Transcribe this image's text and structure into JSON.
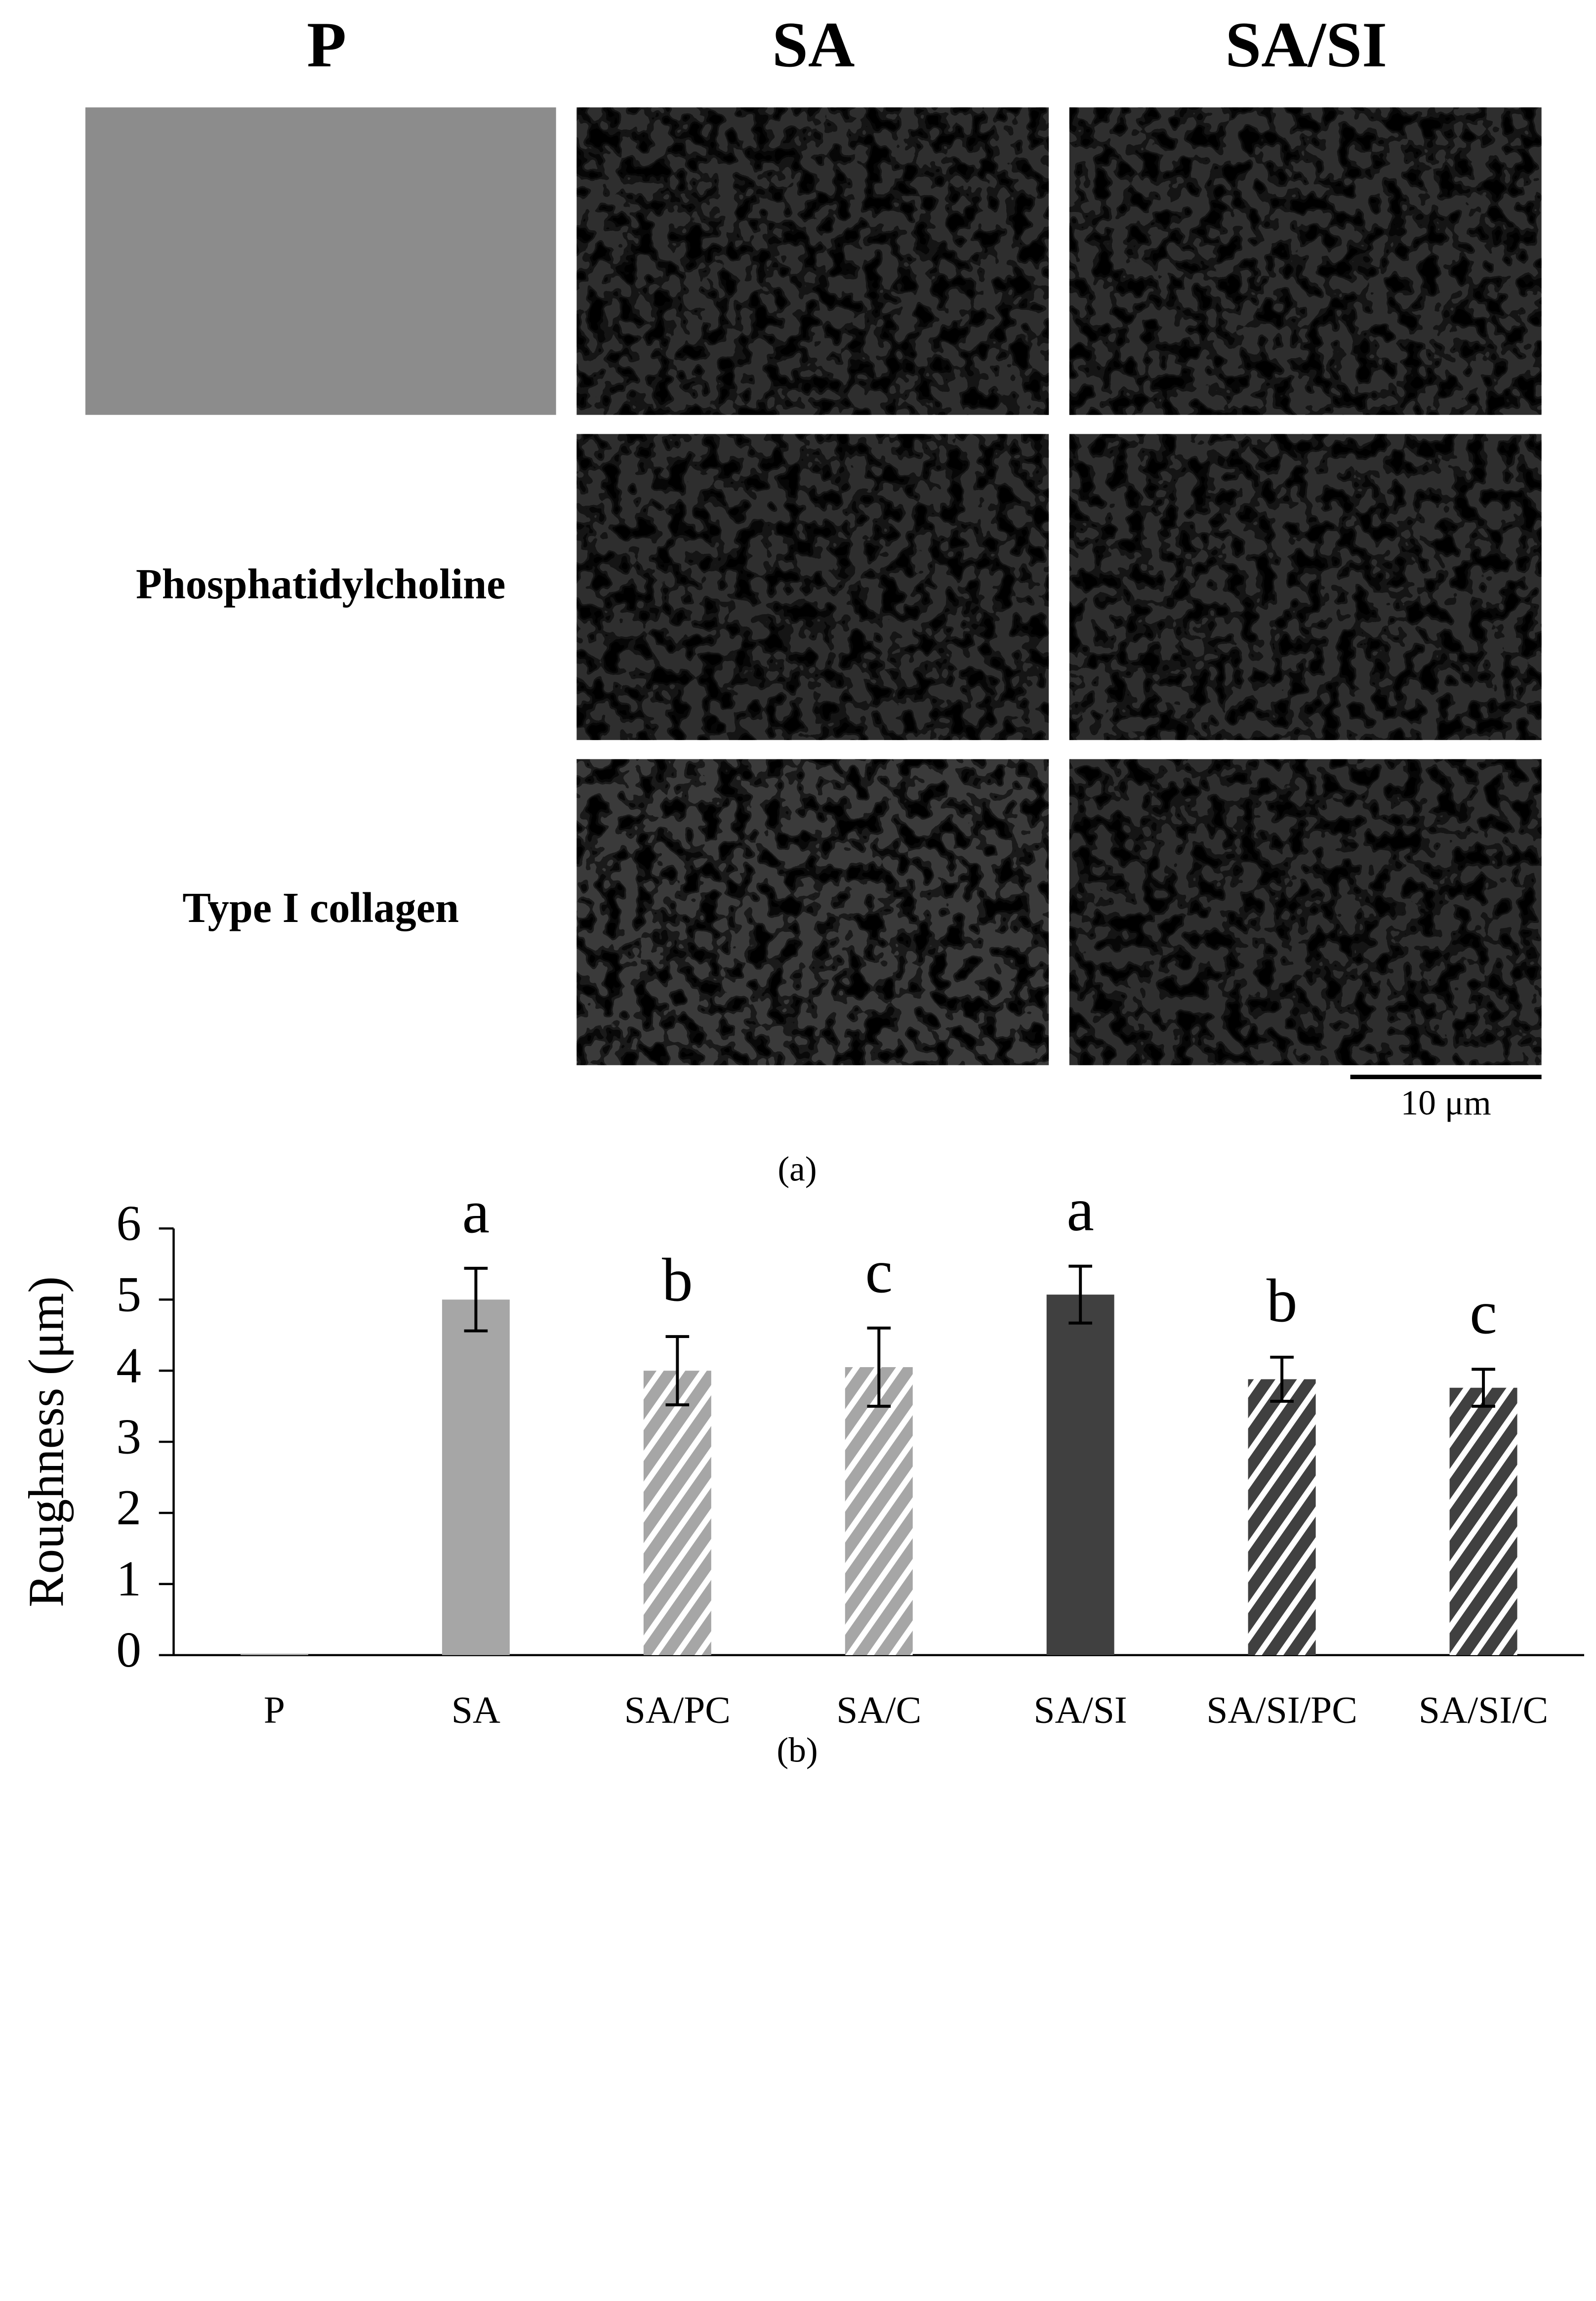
{
  "figure_a": {
    "column_labels": [
      "P",
      "SA",
      "SA/SI"
    ],
    "row_labels": [
      "Phosphatidylcholine",
      "Type I collagen"
    ],
    "scale_bar": "10 μm",
    "caption": "(a)"
  },
  "chart_data": {
    "type": "bar",
    "caption": "(b)",
    "y_label": "Roughness (μm)",
    "categories": [
      "P",
      "SA",
      "SA/PC",
      "SA/C",
      "SA/SI",
      "SA/SI/PC",
      "SA/SI/C"
    ],
    "values": [
      0.02,
      5.0,
      4.0,
      4.05,
      5.07,
      3.88,
      3.76
    ],
    "errors": [
      0,
      0.44,
      0.48,
      0.55,
      0.4,
      0.31,
      0.26
    ],
    "annotations": [
      null,
      "a",
      "b",
      "c",
      "a",
      "b",
      "c"
    ],
    "colors": [
      "#a6a6a6",
      "#a6a6a6",
      "#a6a6a6",
      "#a6a6a6",
      "#404040",
      "#404040",
      "#404040"
    ],
    "patterns": [
      "solid",
      "solid",
      "hatch",
      "hatch",
      "solid",
      "hatch",
      "hatch"
    ],
    "ylim": [
      0,
      6
    ],
    "yticks": [
      0,
      1,
      2,
      3,
      4,
      5,
      6
    ]
  }
}
